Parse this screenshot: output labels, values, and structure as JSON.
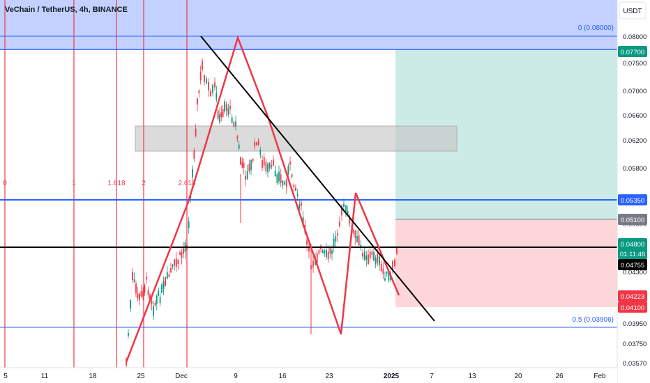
{
  "chart_data": {
    "type": "candlestick",
    "title": "VeChain / TetherUS, 4h, BINANCE",
    "currency_button": "USDT",
    "x_ticks": [
      "5",
      "11",
      "18",
      "25",
      "Dec",
      "9",
      "16",
      "23",
      "2025",
      "7",
      "13",
      "20",
      "26",
      "Feb"
    ],
    "y_ticks": [
      "0.08000",
      "0.07500",
      "0.07000",
      "0.06600",
      "0.06200",
      "0.05800",
      "0.05400",
      "0.05000",
      "0.04600",
      "0.04300",
      "0.03950",
      "0.03750",
      "0.03570"
    ],
    "price_tags": [
      {
        "value": 0.077,
        "text": "0.07700",
        "color": "#089981"
      },
      {
        "value": 0.0535,
        "text": "0.05350",
        "color": "#2962ff"
      },
      {
        "value": 0.051,
        "text": "0.05100",
        "color": "#787b86"
      },
      {
        "value": 0.048,
        "text": "0.04800",
        "color": "#089981"
      },
      {
        "value": 0.04755,
        "text": "0.04755",
        "color": "#000000"
      },
      {
        "value": 0.04223,
        "text": "0.04223",
        "color": "#f23645"
      },
      {
        "value": 0.041,
        "text": "0.04100",
        "color": "#f23645"
      }
    ],
    "countdown": "01:11:46",
    "fib_time_labels": [
      "0",
      "1",
      "1.618",
      "2",
      "2.618"
    ],
    "fib_levels": [
      {
        "label": "0 (0.08000)",
        "value": 0.08
      },
      {
        "label": "0.5 (0.03906)",
        "value": 0.03906
      }
    ],
    "horizontal_levels": [
      {
        "value": 0.0535,
        "color": "#2962ff"
      },
      {
        "value": 0.04755,
        "color": "#000000"
      }
    ],
    "supply_zone": [
      0.0602,
      0.0645
    ],
    "position": {
      "entry": 0.051,
      "target": 0.077,
      "stop": 0.041
    },
    "colors": {
      "up": "#089981",
      "down": "#f23645",
      "pattern": "#f23645",
      "trendline": "#000000",
      "fib_zone": "#b3c6ff",
      "fib_line": "#2962ff"
    }
  }
}
